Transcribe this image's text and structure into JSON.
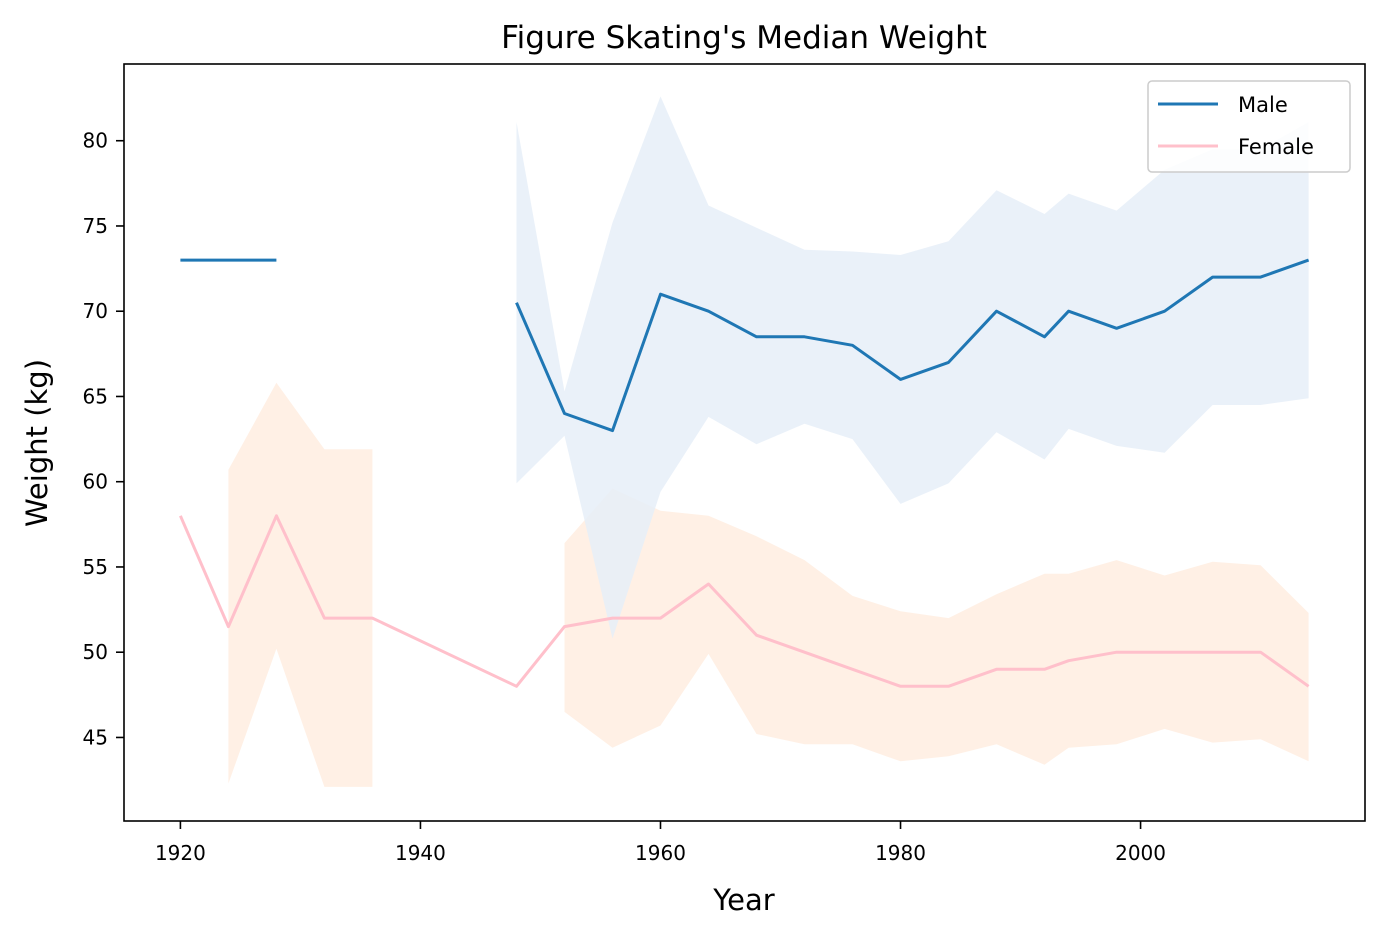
{
  "chart_data": {
    "type": "line",
    "title": "Figure Skating's Median Weight",
    "xlabel": "Year",
    "ylabel": "Weight (kg)",
    "xlim": [
      1915.3,
      2018.7
    ],
    "ylim": [
      40.1,
      84.5
    ],
    "xticks": [
      1920,
      1940,
      1960,
      1980,
      2000
    ],
    "yticks": [
      45,
      50,
      55,
      60,
      65,
      70,
      75,
      80
    ],
    "grid": false,
    "legend_position": "top-right",
    "series": [
      {
        "name": "Male",
        "color": "#1f77b4",
        "band_color": "#e6eff8",
        "segments": [
          {
            "x": [
              1920,
              1924,
              1928
            ],
            "y": [
              73,
              73,
              73
            ]
          },
          {
            "x": [
              1948,
              1952,
              1956,
              1960,
              1964,
              1968,
              1972,
              1976,
              1980,
              1984,
              1988,
              1992,
              1994,
              1998,
              2002,
              2006,
              2010,
              2014
            ],
            "y": [
              70.5,
              64,
              63,
              71,
              70,
              68.5,
              68.5,
              68,
              66,
              67,
              70,
              68.5,
              70,
              69,
              70,
              72,
              72,
              73
            ]
          }
        ],
        "band": {
          "x": [
            1948,
            1952,
            1956,
            1960,
            1964,
            1968,
            1972,
            1976,
            1980,
            1984,
            1988,
            1992,
            1994,
            1998,
            2002,
            2006,
            2010,
            2014
          ],
          "lower": [
            59.9,
            62.7,
            50.8,
            59.4,
            63.8,
            62.2,
            63.4,
            62.5,
            58.7,
            59.9,
            62.9,
            61.3,
            63.1,
            62.1,
            61.7,
            64.5,
            64.5,
            64.9
          ],
          "upper": [
            81.1,
            65.3,
            75.2,
            82.6,
            76.2,
            74.9,
            73.6,
            73.5,
            73.3,
            74.1,
            77.1,
            75.7,
            76.9,
            75.9,
            78.3,
            79.5,
            79.5,
            81.1
          ]
        }
      },
      {
        "name": "Female",
        "color": "#ffc0cb",
        "band_color": "#fff0e5",
        "segments": [
          {
            "x": [
              1920,
              1924,
              1928,
              1932,
              1936,
              1948,
              1952,
              1956,
              1960,
              1964,
              1968,
              1972,
              1976,
              1980,
              1984,
              1988,
              1992,
              1994,
              1998,
              2002,
              2006,
              2010,
              2014
            ],
            "y": [
              58,
              51.5,
              58,
              52,
              52,
              48,
              51.5,
              52,
              52,
              54,
              51,
              50,
              49,
              48,
              48,
              49,
              49,
              49.5,
              50,
              50,
              50,
              50,
              48
            ]
          }
        ],
        "bands": [
          {
            "x": [
              1924,
              1928,
              1932,
              1936
            ],
            "lower": [
              42.3,
              50.2,
              42.1,
              42.1
            ],
            "upper": [
              60.7,
              65.8,
              61.9,
              61.9
            ]
          },
          {
            "x": [
              1952,
              1956,
              1960,
              1964,
              1968,
              1972,
              1976,
              1980,
              1984,
              1988,
              1992,
              1994,
              1998,
              2002,
              2006,
              2010,
              2014
            ],
            "lower": [
              46.5,
              44.4,
              45.7,
              49.9,
              45.2,
              44.6,
              44.6,
              43.6,
              43.9,
              44.6,
              43.4,
              44.4,
              44.6,
              45.5,
              44.7,
              44.9,
              43.6
            ],
            "upper": [
              56.4,
              59.6,
              58.3,
              58,
              56.8,
              55.4,
              53.3,
              52.4,
              52,
              53.4,
              54.6,
              54.6,
              55.4,
              54.5,
              55.3,
              55.1,
              52.3
            ]
          }
        ]
      }
    ]
  }
}
